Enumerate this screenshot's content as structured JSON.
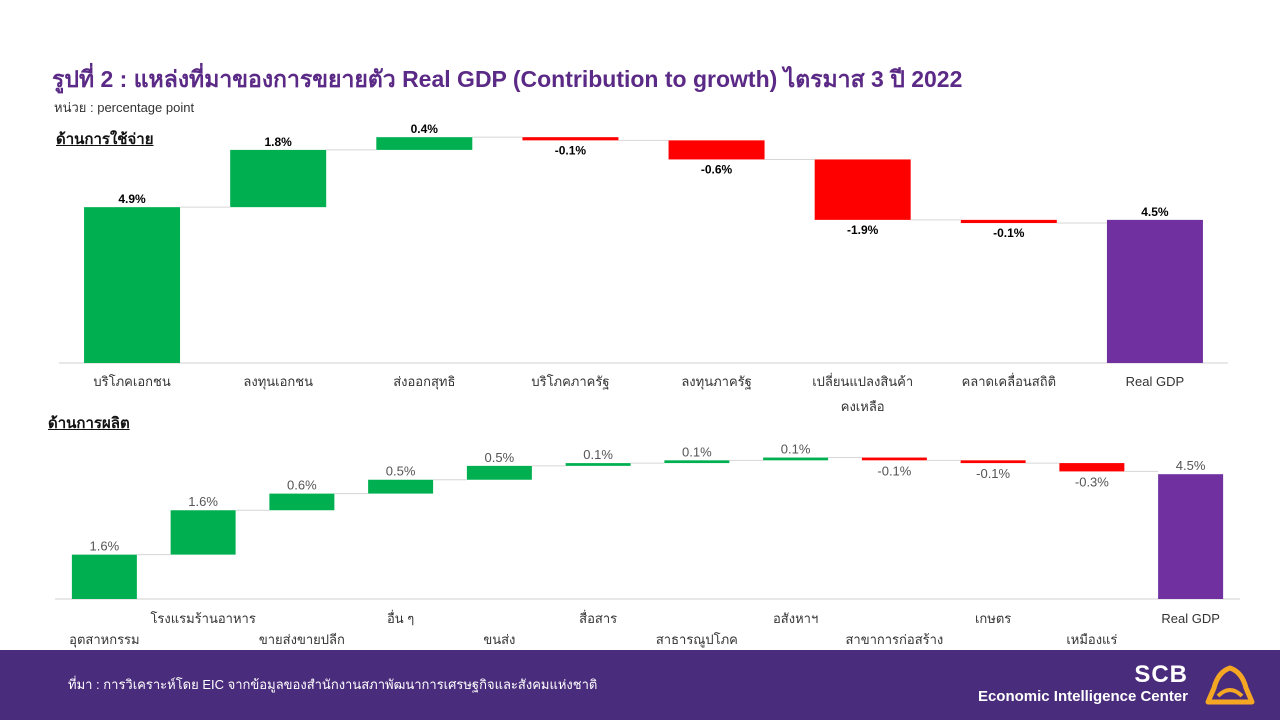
{
  "header": {
    "title": "รูปที่ 2 : แหล่งที่มาของการขยายตัว Real GDP (Contribution to growth) ไตรมาส 3 ปี 2022",
    "unit": "หน่วย : percentage point"
  },
  "colors": {
    "positive": "#00b050",
    "negative": "#ff0000",
    "total": "#7030a0",
    "title": "#5b2a86",
    "footer": "#4a2c7c",
    "logo": "#f5a623"
  },
  "chart_data": [
    {
      "type": "bar",
      "subtype": "waterfall",
      "section_label": "ด้านการใช้จ่าย",
      "categories": [
        "บริโภคเอกชน",
        "ลงทุนเอกชน",
        "ส่งออกสุทธิ",
        "บริโภคภาครัฐ",
        "ลงทุนภาครัฐ",
        "เปลี่ยนแปลงสินค้าคงเหลือ",
        "คลาดเคลื่อนสถิติ",
        "Real GDP"
      ],
      "category_lines": [
        [
          "บริโภคเอกชน"
        ],
        [
          "ลงทุนเอกชน"
        ],
        [
          "ส่งออกสุทธิ"
        ],
        [
          "บริโภคภาครัฐ"
        ],
        [
          "ลงทุนภาครัฐ"
        ],
        [
          "เปลี่ยนแปลงสินค้า",
          "คงเหลือ"
        ],
        [
          "คลาดเคลื่อนสถิติ"
        ],
        [
          "Real GDP"
        ]
      ],
      "values": [
        4.9,
        1.8,
        0.4,
        -0.1,
        -0.6,
        -1.9,
        -0.1,
        4.5
      ],
      "data_labels": [
        "4.9%",
        "1.8%",
        "0.4%",
        "-0.1%",
        "-0.6%",
        "-1.9%",
        "-0.1%",
        "4.5%"
      ],
      "is_total": [
        false,
        false,
        false,
        false,
        false,
        false,
        false,
        true
      ],
      "ylim": [
        0,
        7.2
      ],
      "grid": false,
      "legend": "none"
    },
    {
      "type": "bar",
      "subtype": "waterfall",
      "section_label": "ด้านการผลิต",
      "categories": [
        "อุตสาหกรรม",
        "โรงแรมร้านอาหาร",
        "ขายส่งขายปลีก",
        "อื่น ๆ",
        "ขนส่ง",
        "สื่อสาร",
        "สาธารณูปโภค",
        "อสังหาฯ",
        "สาขาการก่อสร้าง",
        "เกษตร",
        "เหมืองแร่",
        "Real GDP"
      ],
      "values": [
        1.6,
        1.6,
        0.6,
        0.5,
        0.5,
        0.1,
        0.1,
        0.1,
        -0.1,
        -0.1,
        -0.3,
        4.5
      ],
      "data_labels": [
        "1.6%",
        "1.6%",
        "0.6%",
        "0.5%",
        "0.5%",
        "0.1%",
        "0.1%",
        "0.1%",
        "-0.1%",
        "-0.1%",
        "-0.3%",
        "4.5%"
      ],
      "is_total": [
        false,
        false,
        false,
        false,
        false,
        false,
        false,
        false,
        false,
        false,
        false,
        true
      ],
      "ylim": [
        0,
        5.3
      ],
      "grid": false,
      "legend": "none"
    }
  ],
  "footer": {
    "source": "ที่มา : การวิเคราะห์โดย EIC จากข้อมูลของสำนักงานสภาพัฒนาการเศรษฐกิจและสังคมแห่งชาติ",
    "brand_name": "SCB",
    "brand_sub": "Economic Intelligence Center"
  }
}
